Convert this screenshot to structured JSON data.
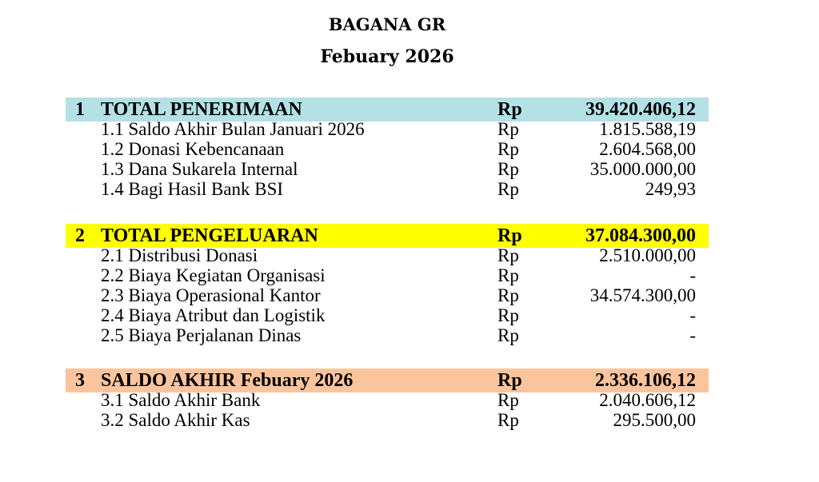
{
  "header": {
    "org": "BAGANA GR",
    "period": "Febuary 2026"
  },
  "sections": [
    {
      "number": "1",
      "title": "TOTAL PENERIMAAN",
      "currency": "Rp",
      "amount": "39.420.406,12",
      "color": "#b3e1e6",
      "items": [
        {
          "label": "1.1 Saldo Akhir Bulan Januari 2026",
          "currency": "Rp",
          "amount": "1.815.588,19"
        },
        {
          "label": "1.2 Donasi Kebencanaan",
          "currency": "Rp",
          "amount": "2.604.568,00"
        },
        {
          "label": "1.3 Dana Sukarela Internal",
          "currency": "Rp",
          "amount": "35.000.000,00"
        },
        {
          "label": "1.4 Bagi Hasil Bank BSI",
          "currency": "Rp",
          "amount": "249,93"
        }
      ]
    },
    {
      "number": "2",
      "title": "TOTAL PENGELUARAN",
      "currency": "Rp",
      "amount": "37.084.300,00",
      "color": "#ffff00",
      "items": [
        {
          "label": "2.1 Distribusi Donasi",
          "currency": "Rp",
          "amount": "2.510.000,00"
        },
        {
          "label": "2.2 Biaya Kegiatan Organisasi",
          "currency": "Rp",
          "amount": "-"
        },
        {
          "label": "2.3 Biaya Operasional Kantor",
          "currency": "Rp",
          "amount": "34.574.300,00"
        },
        {
          "label": "2.4 Biaya Atribut dan Logistik",
          "currency": "Rp",
          "amount": "-"
        },
        {
          "label": "2.5 Biaya Perjalanan Dinas",
          "currency": "Rp",
          "amount": "-"
        }
      ]
    },
    {
      "number": "3",
      "title": "SALDO AKHIR Febuary 2026",
      "currency": "Rp",
      "amount": "2.336.106,12",
      "color": "#fcc49c",
      "items": [
        {
          "label": "3.1 Saldo Akhir Bank",
          "currency": "Rp",
          "amount": "2.040.606,12"
        },
        {
          "label": "3.2 Saldo Akhir Kas",
          "currency": "Rp",
          "amount": "295.500,00"
        }
      ]
    }
  ]
}
